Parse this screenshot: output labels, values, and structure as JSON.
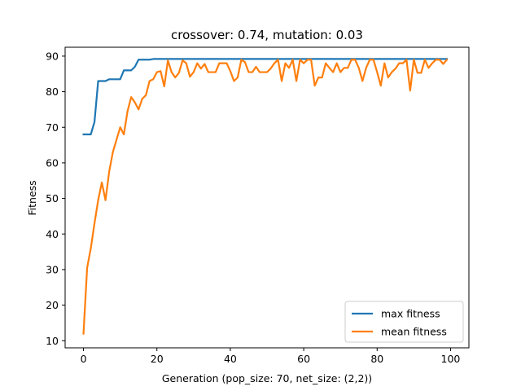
{
  "chart_data": {
    "type": "line",
    "title": "crossover: 0.74, mutation: 0.03",
    "xlabel": "Generation (pop_size: 70, net_size: (2,2))",
    "ylabel": "Fitness",
    "xlim": [
      -5,
      105
    ],
    "ylim": [
      8,
      92.5
    ],
    "xticks": [
      0,
      20,
      40,
      60,
      80,
      100
    ],
    "yticks": [
      10,
      20,
      30,
      40,
      50,
      60,
      70,
      80,
      90
    ],
    "grid": false,
    "legend_position": "lower-right",
    "series": [
      {
        "name": "max fitness",
        "color": "#1f77b4",
        "x": [
          0,
          1,
          2,
          3,
          4,
          5,
          6,
          7,
          8,
          9,
          10,
          11,
          12,
          13,
          14,
          15,
          16,
          17,
          18,
          19,
          20,
          30,
          40,
          50,
          60,
          70,
          80,
          90,
          99
        ],
        "y": [
          68,
          68,
          68,
          71.5,
          83,
          83,
          83,
          83.5,
          83.5,
          83.5,
          83.5,
          86,
          86,
          86,
          87,
          89,
          89,
          89,
          89,
          89.2,
          89.2,
          89.2,
          89.2,
          89.2,
          89.2,
          89.2,
          89.2,
          89.2,
          89.2
        ]
      },
      {
        "name": "mean fitness",
        "color": "#ff7f0e",
        "x": [
          0,
          1,
          2,
          3,
          4,
          5,
          6,
          7,
          8,
          9,
          10,
          11,
          12,
          13,
          14,
          15,
          16,
          17,
          18,
          19,
          20,
          21,
          22,
          23,
          24,
          25,
          26,
          27,
          28,
          29,
          30,
          31,
          32,
          33,
          34,
          35,
          36,
          37,
          38,
          39,
          40,
          41,
          42,
          43,
          44,
          45,
          46,
          47,
          48,
          49,
          50,
          51,
          52,
          53,
          54,
          55,
          56,
          57,
          58,
          59,
          60,
          61,
          62,
          63,
          64,
          65,
          66,
          67,
          68,
          69,
          70,
          71,
          72,
          73,
          74,
          75,
          76,
          77,
          78,
          79,
          80,
          81,
          82,
          83,
          84,
          85,
          86,
          87,
          88,
          89,
          90,
          91,
          92,
          93,
          94,
          95,
          96,
          97,
          98,
          99
        ],
        "y": [
          12,
          30.5,
          36,
          43,
          49.5,
          54.5,
          49.5,
          57.5,
          63,
          66.5,
          70,
          68,
          74.5,
          78.5,
          77,
          75,
          78,
          79,
          83,
          83.5,
          85.5,
          85.8,
          81.5,
          88.8,
          85.5,
          84,
          85.3,
          88.8,
          88,
          84.2,
          85.5,
          88,
          86.5,
          87.8,
          85.5,
          85.5,
          85.5,
          88,
          88,
          88,
          85.8,
          83,
          84,
          89,
          88.3,
          85.5,
          85.5,
          87,
          85.5,
          85.5,
          85.5,
          86.5,
          88,
          89,
          83,
          88,
          86.7,
          89,
          83,
          89,
          88,
          89,
          89,
          81.7,
          84,
          84,
          88,
          86.7,
          85.5,
          88,
          85.5,
          86.7,
          86.7,
          89,
          89,
          86.7,
          83,
          86.7,
          89,
          89,
          85.5,
          81.7,
          88,
          84,
          85.5,
          86.5,
          88,
          88,
          89,
          80.3,
          89,
          85.3,
          85.3,
          89,
          86.7,
          88,
          89,
          89,
          87.8,
          89
        ]
      }
    ]
  }
}
